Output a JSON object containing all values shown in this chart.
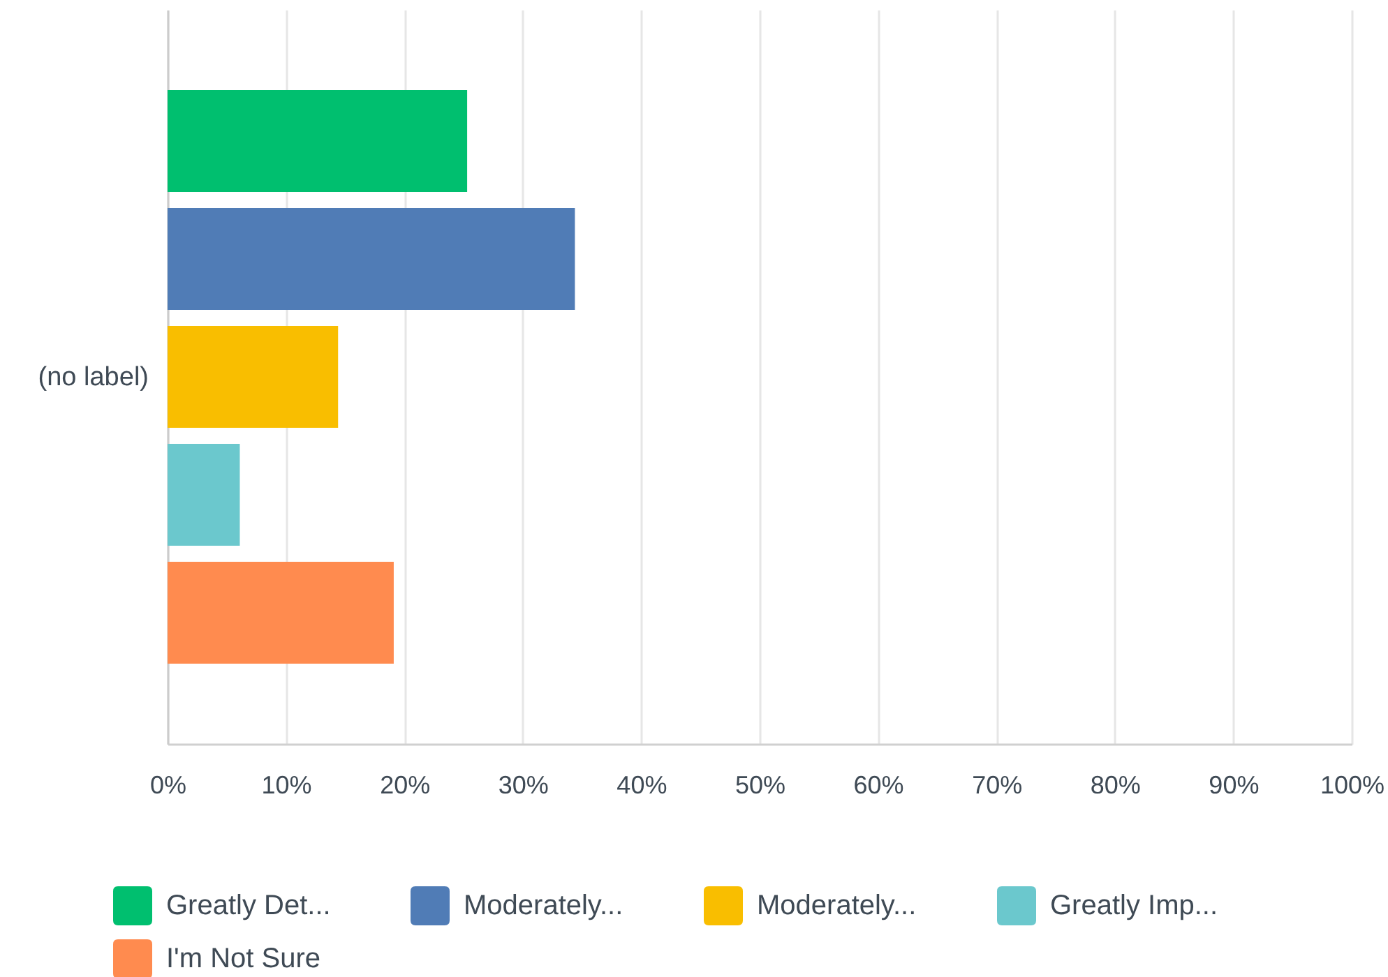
{
  "chart_data": {
    "type": "bar",
    "orientation": "horizontal",
    "categories": [
      "(no label)"
    ],
    "series": [
      {
        "name": "Greatly Det...",
        "color": "#00bf6f",
        "values": [
          25.3
        ]
      },
      {
        "name": "Moderately...",
        "color": "#507cb6",
        "values": [
          34.4
        ]
      },
      {
        "name": "Moderately...",
        "color": "#f9be00",
        "values": [
          14.4
        ]
      },
      {
        "name": "Greatly Imp...",
        "color": "#6bc8cd",
        "values": [
          6.1
        ]
      },
      {
        "name": "I'm Not Sure",
        "color": "#ff8b4f",
        "values": [
          19.1
        ]
      }
    ],
    "xlim": [
      0,
      100
    ],
    "xticks": [
      {
        "value": 0,
        "label": "0%"
      },
      {
        "value": 10,
        "label": "10%"
      },
      {
        "value": 20,
        "label": "20%"
      },
      {
        "value": 30,
        "label": "30%"
      },
      {
        "value": 40,
        "label": "40%"
      },
      {
        "value": 50,
        "label": "50%"
      },
      {
        "value": 60,
        "label": "60%"
      },
      {
        "value": 70,
        "label": "70%"
      },
      {
        "value": 80,
        "label": "80%"
      },
      {
        "value": 90,
        "label": "90%"
      },
      {
        "value": 100,
        "label": "100%"
      }
    ],
    "grid": "x",
    "legend": "bottom"
  }
}
